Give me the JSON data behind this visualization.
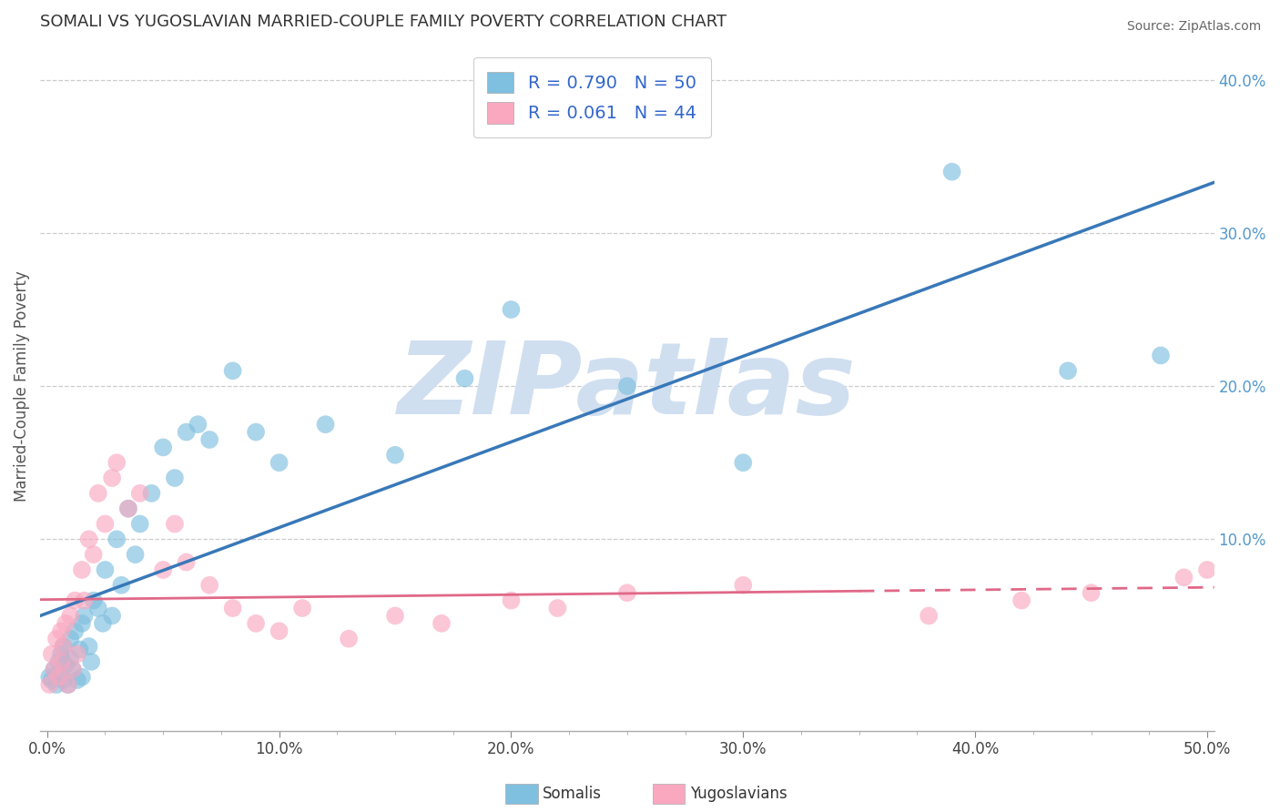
{
  "title": "SOMALI VS YUGOSLAVIAN MARRIED-COUPLE FAMILY POVERTY CORRELATION CHART",
  "source": "Source: ZipAtlas.com",
  "ylabel": "Married-Couple Family Poverty",
  "xlim": [
    -0.003,
    0.503
  ],
  "ylim": [
    -0.025,
    0.425
  ],
  "ytick_vals": [
    0.0,
    0.1,
    0.2,
    0.3,
    0.4
  ],
  "ytick_labels": [
    "",
    "10.0%",
    "20.0%",
    "30.0%",
    "40.0%"
  ],
  "xtick_vals": [
    0.0,
    0.1,
    0.2,
    0.3,
    0.4,
    0.5
  ],
  "xtick_labels": [
    "0.0%",
    "10.0%",
    "20.0%",
    "30.0%",
    "40.0%",
    "50.0%"
  ],
  "somali_R": 0.79,
  "somali_N": 50,
  "yugoslav_R": 0.061,
  "yugoslav_N": 44,
  "somali_color": "#7fbfdf",
  "yugoslav_color": "#f9a8c0",
  "somali_line_color": "#3878b8",
  "yugoslav_line_color": "#e06888",
  "watermark": "ZIPatlas",
  "watermark_color": "#d0dff0",
  "background_color": "#ffffff",
  "grid_color": "#cccccc",
  "somali_x": [
    0.001,
    0.002,
    0.003,
    0.004,
    0.005,
    0.005,
    0.006,
    0.007,
    0.007,
    0.008,
    0.009,
    0.01,
    0.01,
    0.011,
    0.012,
    0.013,
    0.014,
    0.015,
    0.015,
    0.016,
    0.018,
    0.019,
    0.02,
    0.022,
    0.024,
    0.025,
    0.028,
    0.03,
    0.032,
    0.035,
    0.038,
    0.04,
    0.045,
    0.05,
    0.055,
    0.06,
    0.065,
    0.07,
    0.08,
    0.09,
    0.1,
    0.12,
    0.15,
    0.18,
    0.2,
    0.25,
    0.3,
    0.39,
    0.44,
    0.48
  ],
  "somali_y": [
    0.01,
    0.008,
    0.015,
    0.005,
    0.012,
    0.02,
    0.025,
    0.008,
    0.03,
    0.018,
    0.005,
    0.022,
    0.035,
    0.015,
    0.04,
    0.008,
    0.028,
    0.01,
    0.045,
    0.05,
    0.03,
    0.02,
    0.06,
    0.055,
    0.045,
    0.08,
    0.05,
    0.1,
    0.07,
    0.12,
    0.09,
    0.11,
    0.13,
    0.16,
    0.14,
    0.17,
    0.175,
    0.165,
    0.21,
    0.17,
    0.15,
    0.175,
    0.155,
    0.205,
    0.25,
    0.2,
    0.15,
    0.34,
    0.21,
    0.22
  ],
  "yugoslav_x": [
    0.001,
    0.002,
    0.003,
    0.004,
    0.005,
    0.006,
    0.006,
    0.007,
    0.008,
    0.009,
    0.01,
    0.011,
    0.012,
    0.013,
    0.015,
    0.016,
    0.018,
    0.02,
    0.022,
    0.025,
    0.028,
    0.03,
    0.035,
    0.04,
    0.05,
    0.055,
    0.06,
    0.07,
    0.08,
    0.09,
    0.1,
    0.11,
    0.13,
    0.15,
    0.17,
    0.2,
    0.22,
    0.25,
    0.3,
    0.38,
    0.42,
    0.45,
    0.49,
    0.5
  ],
  "yugoslav_y": [
    0.005,
    0.025,
    0.015,
    0.035,
    0.01,
    0.04,
    0.02,
    0.03,
    0.045,
    0.005,
    0.05,
    0.015,
    0.06,
    0.025,
    0.08,
    0.06,
    0.1,
    0.09,
    0.13,
    0.11,
    0.14,
    0.15,
    0.12,
    0.13,
    0.08,
    0.11,
    0.085,
    0.07,
    0.055,
    0.045,
    0.04,
    0.055,
    0.035,
    0.05,
    0.045,
    0.06,
    0.055,
    0.065,
    0.07,
    0.05,
    0.06,
    0.065,
    0.075,
    0.08
  ]
}
